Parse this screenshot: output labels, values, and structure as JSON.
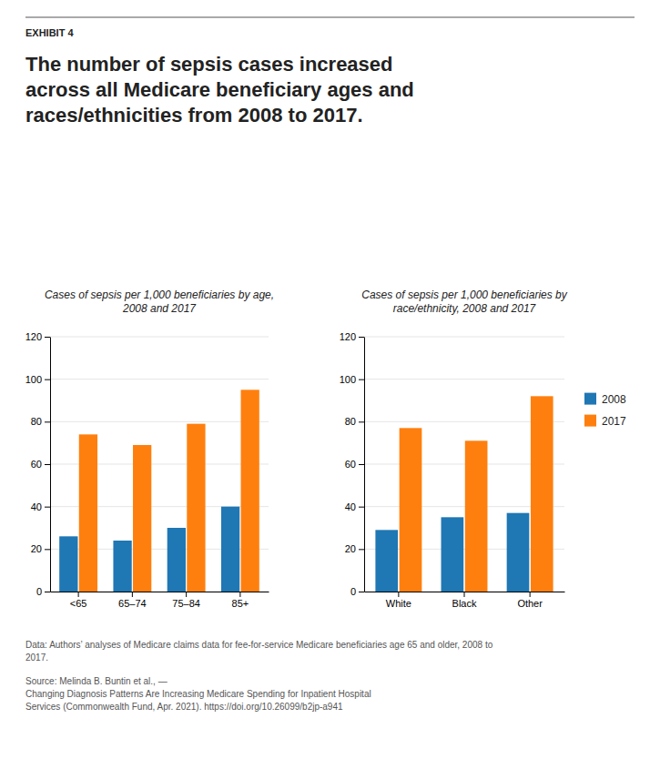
{
  "exhibit_label": "EXHIBIT 4",
  "title": "The number of sepsis cases increased\nacross all Medicare beneficiary ages and\nraces/ethnicities from 2008 to 2017.",
  "chart_data": [
    {
      "type": "bar",
      "subtitle": "Cases of sepsis per 1,000 beneficiaries by age,\n2008 and 2017",
      "categories": [
        "<65",
        "65–74",
        "75–84",
        "85+"
      ],
      "series": [
        {
          "name": "2008",
          "values": [
            26,
            24,
            30,
            40
          ]
        },
        {
          "name": "2017",
          "values": [
            74,
            69,
            79,
            95
          ]
        }
      ],
      "ylim": [
        0,
        120
      ],
      "yticks": [
        0,
        20,
        40,
        60,
        80,
        100,
        120
      ],
      "grid": true
    },
    {
      "type": "bar",
      "subtitle": "Cases of sepsis per 1,000 beneficiaries by\nrace/ethnicity, 2008 and 2017",
      "categories": [
        "White",
        "Black",
        "Other"
      ],
      "series": [
        {
          "name": "2008",
          "values": [
            29,
            35,
            37
          ]
        },
        {
          "name": "2017",
          "values": [
            77,
            71,
            92
          ]
        }
      ],
      "ylim": [
        0,
        120
      ],
      "yticks": [
        0,
        20,
        40,
        60,
        80,
        100,
        120
      ],
      "grid": true,
      "legend": "right"
    }
  ],
  "data_note": "Data: Authors’ analyses of Medicare claims data for fee-for-service Medicare beneficiaries age 65 and older, 2008 to\n2017.",
  "source": [
    [
      "Source: Melinda B. Buntin et al., — "
    ],
    [
      "Changing Diagnosis Patterns Are Increasing Medicare Spending for Inpatient Hospital"
    ],
    [
      "Services",
      " (Commonwealth Fund, Apr. 2021). ",
      "https://doi.org/10.26099/b2jp-a941"
    ]
  ]
}
